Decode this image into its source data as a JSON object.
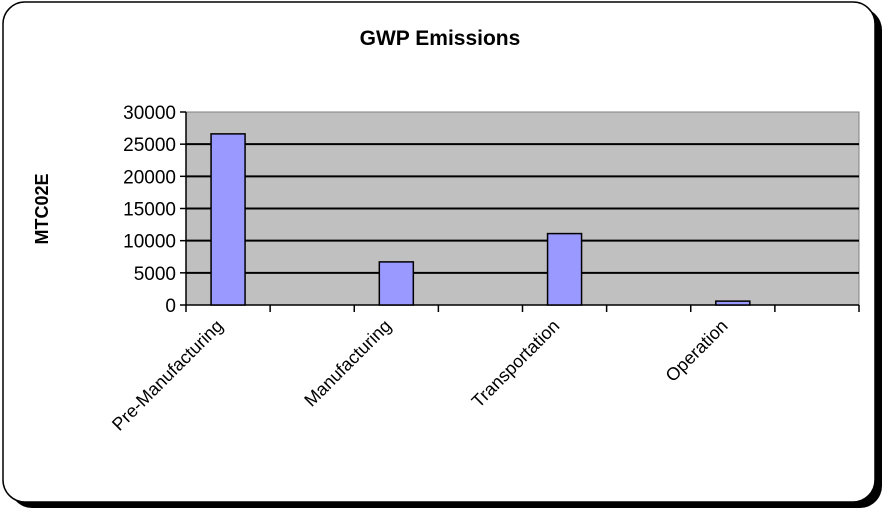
{
  "chart_data": {
    "type": "bar",
    "title": "GWP Emissions",
    "xlabel": "",
    "ylabel": "MTC02E",
    "categories": [
      "Pre-Manufacturing",
      "",
      "Manufacturing",
      "",
      "Transportation",
      "",
      "Operation",
      ""
    ],
    "values": [
      26600,
      null,
      6700,
      null,
      11100,
      null,
      600,
      null
    ],
    "ylim": [
      0,
      30000
    ],
    "yticks": [
      "0",
      "5000",
      "10000",
      "15000",
      "20000",
      "25000",
      "30000"
    ],
    "grid": true,
    "legend": "none",
    "colors": {
      "bar": "#9999ff",
      "plot_bg": "#c0c0c0",
      "border": "#000000"
    }
  }
}
